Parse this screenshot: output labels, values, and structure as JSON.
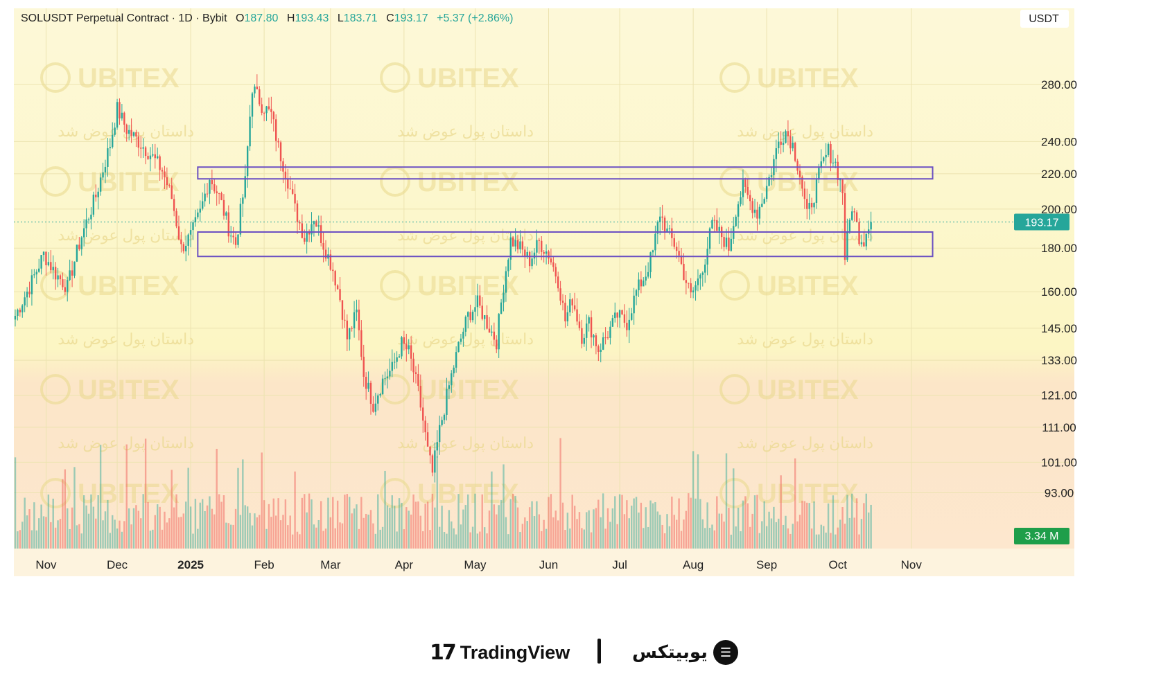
{
  "header": {
    "symbol": "SOLUSDT Perpetual Contract · 1D · Bybit",
    "o_label": "O",
    "o_value": "187.80",
    "h_label": "H",
    "h_value": "193.43",
    "l_label": "L",
    "l_value": "183.71",
    "c_label": "C",
    "c_value": "193.17",
    "change": "+5.37 (+2.86%)"
  },
  "currency_label": "USDT",
  "price_label": "193.17",
  "volume_label": "3.34 M",
  "watermark": {
    "latin": "UBITEX",
    "persian": "داستان پول عوض شد"
  },
  "footer": {
    "tradingview": "TradingView",
    "ubitex": "یوبیتکس"
  },
  "colors": {
    "up": "#26a69a",
    "down": "#ef5350",
    "zone": "#6a4fc2",
    "bg_top": "#fdf6cf",
    "bg_bottom": "#fce5c8"
  },
  "chart_data": {
    "type": "candlestick",
    "scale": "log",
    "ylim": [
      80,
      330
    ],
    "y_ticks": [
      {
        "v": 280,
        "label": "280.00"
      },
      {
        "v": 240,
        "label": "240.00"
      },
      {
        "v": 220,
        "label": "220.00"
      },
      {
        "v": 200,
        "label": "200.00"
      },
      {
        "v": 180,
        "label": "180.00"
      },
      {
        "v": 160,
        "label": "160.00"
      },
      {
        "v": 145,
        "label": "145.00"
      },
      {
        "v": 133,
        "label": "133.00"
      },
      {
        "v": 121,
        "label": "121.00"
      },
      {
        "v": 111,
        "label": "111.00"
      },
      {
        "v": 101,
        "label": "101.00"
      },
      {
        "v": 93,
        "label": "93.00"
      }
    ],
    "x_ticks": [
      {
        "i": 13,
        "label": "Nov"
      },
      {
        "i": 43,
        "label": "Dec"
      },
      {
        "i": 74,
        "label": "2025",
        "bold": true
      },
      {
        "i": 105,
        "label": "Feb"
      },
      {
        "i": 133,
        "label": "Mar"
      },
      {
        "i": 164,
        "label": "Apr"
      },
      {
        "i": 194,
        "label": "May"
      },
      {
        "i": 225,
        "label": "Jun"
      },
      {
        "i": 255,
        "label": "Jul"
      },
      {
        "i": 286,
        "label": "Aug"
      },
      {
        "i": 317,
        "label": "Sep"
      },
      {
        "i": 347,
        "label": "Oct"
      },
      {
        "i": 378,
        "label": "Nov"
      }
    ],
    "zones": [
      {
        "from_i": 77,
        "to_i": 387,
        "low": 217,
        "high": 224
      },
      {
        "from_i": 77,
        "to_i": 387,
        "low": 176,
        "high": 188
      }
    ],
    "last_price": 193.17,
    "anchors": [
      [
        0,
        150
      ],
      [
        6,
        162
      ],
      [
        12,
        177
      ],
      [
        17,
        168
      ],
      [
        22,
        162
      ],
      [
        28,
        186
      ],
      [
        34,
        207
      ],
      [
        40,
        238
      ],
      [
        43,
        262
      ],
      [
        47,
        248
      ],
      [
        52,
        240
      ],
      [
        57,
        232
      ],
      [
        62,
        222
      ],
      [
        66,
        206
      ],
      [
        70,
        180
      ],
      [
        74,
        186
      ],
      [
        78,
        198
      ],
      [
        82,
        218
      ],
      [
        86,
        207
      ],
      [
        90,
        190
      ],
      [
        93,
        182
      ],
      [
        97,
        215
      ],
      [
        100,
        278
      ],
      [
        104,
        265
      ],
      [
        108,
        258
      ],
      [
        111,
        236
      ],
      [
        115,
        216
      ],
      [
        118,
        200
      ],
      [
        122,
        185
      ],
      [
        126,
        196
      ],
      [
        130,
        182
      ],
      [
        134,
        170
      ],
      [
        137,
        157
      ],
      [
        140,
        141
      ],
      [
        144,
        151
      ],
      [
        147,
        128
      ],
      [
        151,
        118
      ],
      [
        155,
        126
      ],
      [
        159,
        130
      ],
      [
        163,
        139
      ],
      [
        166,
        136
      ],
      [
        170,
        122
      ],
      [
        174,
        104
      ],
      [
        176,
        98
      ],
      [
        179,
        110
      ],
      [
        183,
        124
      ],
      [
        187,
        138
      ],
      [
        191,
        150
      ],
      [
        195,
        155
      ],
      [
        199,
        147
      ],
      [
        203,
        140
      ],
      [
        206,
        163
      ],
      [
        209,
        184
      ],
      [
        213,
        180
      ],
      [
        217,
        174
      ],
      [
        221,
        183
      ],
      [
        225,
        177
      ],
      [
        229,
        165
      ],
      [
        232,
        148
      ],
      [
        235,
        157
      ],
      [
        239,
        142
      ],
      [
        242,
        147
      ],
      [
        246,
        137
      ],
      [
        250,
        143
      ],
      [
        254,
        150
      ],
      [
        258,
        147
      ],
      [
        262,
        160
      ],
      [
        266,
        168
      ],
      [
        269,
        178
      ],
      [
        272,
        198
      ],
      [
        275,
        188
      ],
      [
        279,
        180
      ],
      [
        282,
        168
      ],
      [
        285,
        158
      ],
      [
        288,
        165
      ],
      [
        291,
        175
      ],
      [
        294,
        192
      ],
      [
        298,
        186
      ],
      [
        301,
        180
      ],
      [
        304,
        200
      ],
      [
        307,
        212
      ],
      [
        310,
        204
      ],
      [
        313,
        198
      ],
      [
        316,
        208
      ],
      [
        319,
        222
      ],
      [
        322,
        240
      ],
      [
        325,
        247
      ],
      [
        328,
        238
      ],
      [
        331,
        220
      ],
      [
        334,
        196
      ],
      [
        337,
        208
      ],
      [
        340,
        224
      ],
      [
        343,
        234
      ],
      [
        346,
        226
      ],
      [
        349,
        210
      ],
      [
        350,
        176
      ],
      [
        353,
        202
      ],
      [
        356,
        186
      ],
      [
        358,
        184
      ],
      [
        360,
        193.17
      ]
    ]
  }
}
